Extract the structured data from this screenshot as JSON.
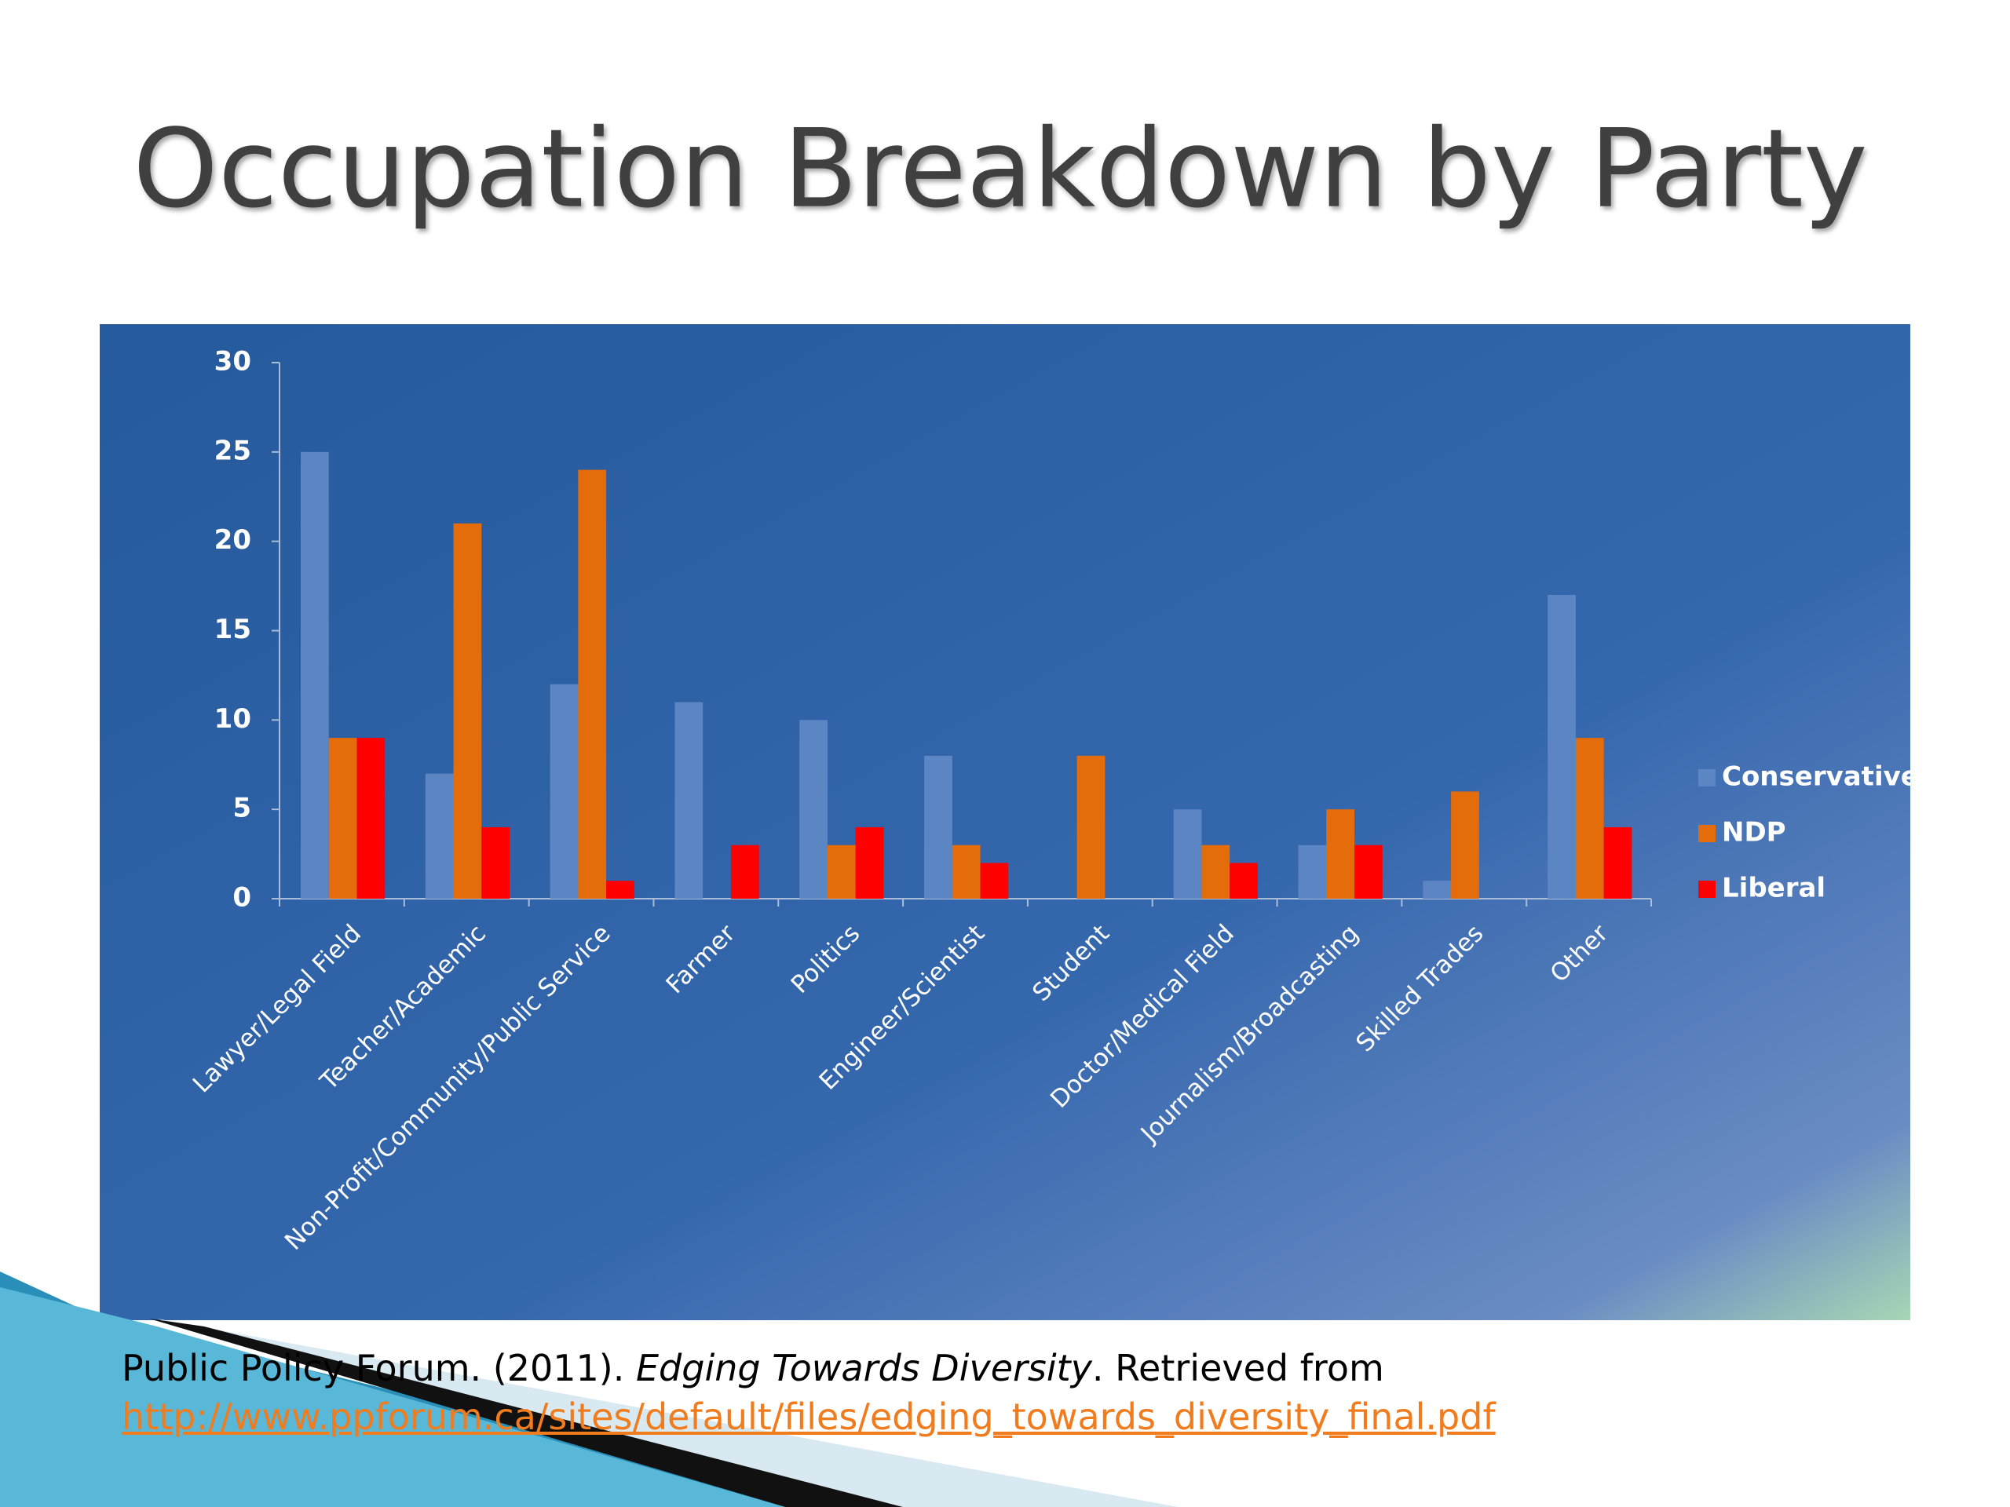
{
  "chart_data": {
    "type": "bar",
    "title": "Occupation Breakdown by Party",
    "categories": [
      "Lawyer/Legal Field",
      "Teacher/Academic",
      "Non-Profit/Community/Public Service",
      "Farmer",
      "Politics",
      "Engineer/Scientist",
      "Student",
      "Doctor/Medical Field",
      "Journalism/Broadcasting",
      "Skilled Trades",
      "Other"
    ],
    "series": [
      {
        "name": "Conservative",
        "color": "#5b86c3",
        "values": [
          25,
          7,
          12,
          11,
          10,
          8,
          0,
          5,
          3,
          1,
          17
        ]
      },
      {
        "name": "NDP",
        "color": "#e46c0a",
        "values": [
          9,
          21,
          24,
          0,
          3,
          3,
          8,
          3,
          5,
          6,
          9
        ]
      },
      {
        "name": "Liberal",
        "color": "#ff0000",
        "values": [
          9,
          4,
          1,
          3,
          4,
          2,
          0,
          2,
          3,
          0,
          4
        ]
      }
    ],
    "ylim": [
      0,
      30
    ],
    "yticks": [
      0,
      5,
      10,
      15,
      20,
      25,
      30
    ],
    "grid": false,
    "legend": "right"
  },
  "citation": {
    "prefix": "Public Policy Forum. (2011). ",
    "title": "Edging Towards Diversity",
    "suffix": ". Retrieved from",
    "url": "http://www.ppforum.ca/sites/default/files/edging_towards_diversity_final.pdf"
  }
}
